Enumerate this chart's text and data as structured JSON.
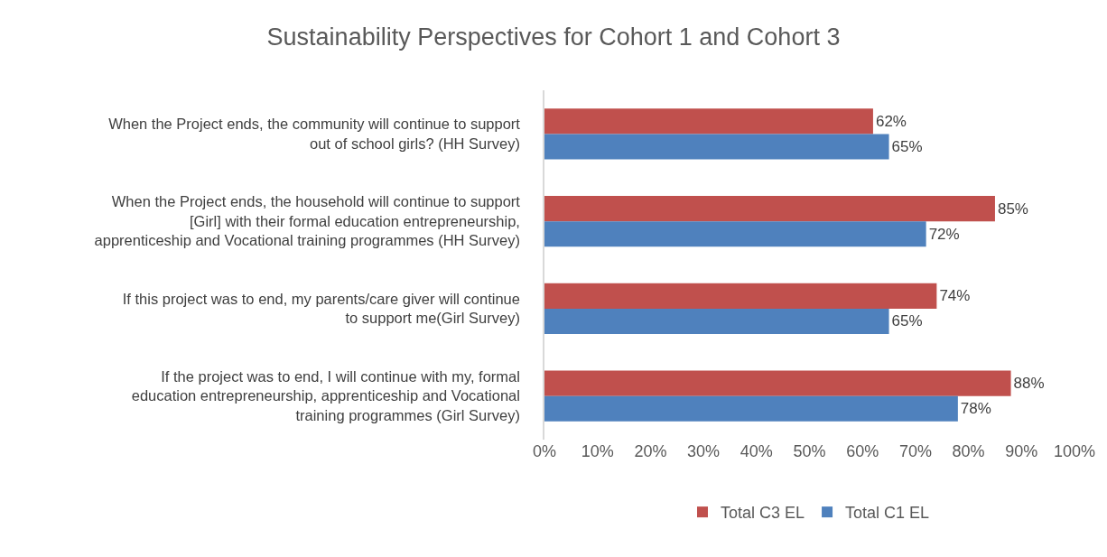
{
  "chart_data": {
    "type": "bar",
    "orientation": "horizontal",
    "title": "Sustainability Perspectives for Cohort 1 and Cohort 3",
    "categories": [
      "When the Project ends, the community will continue to support out of school girls? (HH Survey)",
      "When the Project ends, the household will continue to support [Girl] with their formal education entrepreneurship, apprenticeship and Vocational training programmes (HH Survey)",
      "If this project was to end, my parents/care giver will continue to support me(Girl Survey)",
      "If the project was to end, I will continue with my, formal education entrepreneurship, apprenticeship and Vocational training programmes (Girl Survey)"
    ],
    "series": [
      {
        "name": "Total C3 EL",
        "color": "#c0504d",
        "values": [
          62,
          85,
          74,
          88
        ],
        "value_labels": [
          "62%",
          "85%",
          "74%",
          "88%"
        ]
      },
      {
        "name": "Total C1 EL",
        "color": "#4f81bd",
        "values": [
          65,
          72,
          65,
          78
        ],
        "value_labels": [
          "65%",
          "72%",
          "65%",
          "78%"
        ]
      }
    ],
    "xlim": [
      0,
      100
    ],
    "xticks": [
      {
        "value": 0,
        "label": "0%"
      },
      {
        "value": 10,
        "label": "10%"
      },
      {
        "value": 20,
        "label": "20%"
      },
      {
        "value": 30,
        "label": "30%"
      },
      {
        "value": 40,
        "label": "40%"
      },
      {
        "value": 50,
        "label": "50%"
      },
      {
        "value": 60,
        "label": "60%"
      },
      {
        "value": 70,
        "label": "70%"
      },
      {
        "value": 80,
        "label": "80%"
      },
      {
        "value": 90,
        "label": "90%"
      },
      {
        "value": 100,
        "label": "100%"
      }
    ],
    "grid": false,
    "legend": "bottom"
  }
}
